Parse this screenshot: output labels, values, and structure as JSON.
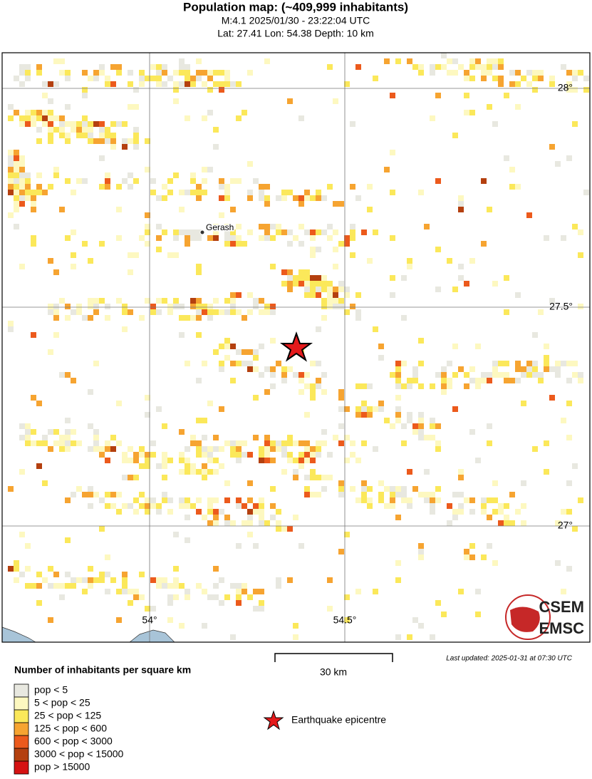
{
  "header": {
    "title": "Population map: (~409,999 inhabitants)",
    "event": "M:4.1 2025/01/30 - 23:22:04 UTC",
    "location": "Lat: 27.41 Lon: 54.38 Depth: 10 km"
  },
  "map": {
    "place": "Gerash",
    "lat_labels": [
      "28°",
      "27.5°",
      "27°"
    ],
    "lon_labels": [
      "54°",
      "54.5°"
    ],
    "scale": "30 km",
    "updated": "Last updated: 2025-01-31 at 07:30 UTC"
  },
  "legend": {
    "title": "Number of inhabitants per square km",
    "items": [
      {
        "label": "pop < 5",
        "color": "#e8e8e0"
      },
      {
        "label": "5 < pop < 25",
        "color": "#fdf8c0"
      },
      {
        "label": "25 < pop < 125",
        "color": "#fbe85a"
      },
      {
        "label": "125 < pop < 600",
        "color": "#f6a431"
      },
      {
        "label": "600 < pop < 3000",
        "color": "#ec5a1c"
      },
      {
        "label": "3000 < pop < 15000",
        "color": "#b4400f"
      },
      {
        "label": "pop > 15000",
        "color": "#d51212"
      }
    ],
    "epicentre": "Earthquake epicentre"
  },
  "logo": {
    "top": "CSEM",
    "bottom": "EMSC"
  }
}
